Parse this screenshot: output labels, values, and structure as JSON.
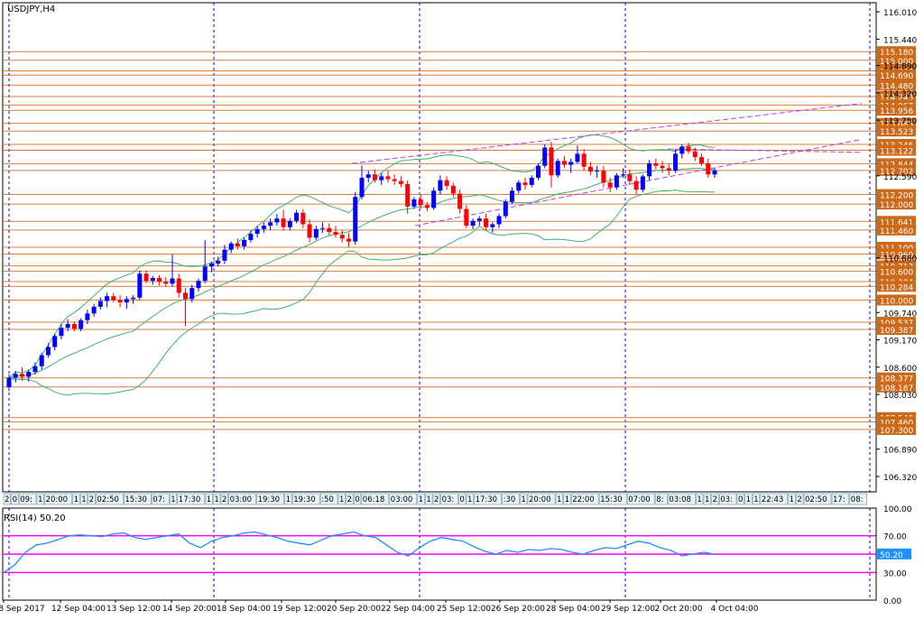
{
  "chart_data": {
    "type": "candlestick",
    "title": "USDJPY,H4",
    "price_axis": {
      "ylim": [
        106.0,
        116.2
      ],
      "ticks": [
        "116.010",
        "115.440",
        "114.890",
        "114.320",
        "113.750",
        "112.590",
        "110.880",
        "109.740",
        "109.170",
        "108.600",
        "108.030",
        "106.890",
        "106.320"
      ]
    },
    "levels": [
      {
        "value": 115.18,
        "label": "115.180"
      },
      {
        "value": 115.0,
        "label": "115.000"
      },
      {
        "value": 114.78,
        "label": "114.780"
      },
      {
        "value": 114.69,
        "label": "114.690"
      },
      {
        "value": 114.48,
        "label": "114.480"
      },
      {
        "value": 114.243,
        "label": "114.243"
      },
      {
        "value": 114.067,
        "label": "114.067"
      },
      {
        "value": 113.956,
        "label": "113.956"
      },
      {
        "value": 113.685,
        "label": "113.685"
      },
      {
        "value": 113.523,
        "label": "113.523"
      },
      {
        "value": 113.246,
        "label": "113.246"
      },
      {
        "value": 113.122,
        "label": "113.122"
      },
      {
        "value": 112.844,
        "label": "112.844"
      },
      {
        "value": 112.702,
        "label": "112.702"
      },
      {
        "value": 112.2,
        "label": "112.200"
      },
      {
        "value": 112.0,
        "label": "112.000"
      },
      {
        "value": 111.641,
        "label": "111.641"
      },
      {
        "value": 111.46,
        "label": "111.460"
      },
      {
        "value": 111.1,
        "label": "111.100"
      },
      {
        "value": 110.96,
        "label": "110.960"
      },
      {
        "value": 110.713,
        "label": "110.713"
      },
      {
        "value": 110.6,
        "label": "110.600"
      },
      {
        "value": 110.384,
        "label": "110.384"
      },
      {
        "value": 110.284,
        "label": "110.284"
      },
      {
        "value": 110.0,
        "label": "110.000"
      },
      {
        "value": 109.537,
        "label": "109.537"
      },
      {
        "value": 109.387,
        "label": "109.387"
      },
      {
        "value": 108.377,
        "label": "108.377"
      },
      {
        "value": 108.187,
        "label": "108.187"
      },
      {
        "value": 107.549,
        "label": "107.549"
      },
      {
        "value": 107.46,
        "label": "107.460"
      },
      {
        "value": 107.3,
        "label": "107.300"
      }
    ],
    "time_labels": [
      "8 Sep 2017",
      "12 Sep 04:00",
      "13 Sep 12:00",
      "14 Sep 20:00",
      "18 Sep 04:00",
      "19 Sep 12:00",
      "20 Sep 20:00",
      "22 Sep 04:00",
      "25 Sep 12:00",
      "26 Sep 20:00",
      "28 Sep 04:00",
      "29 Sep 12:00",
      "2 Oct 20:00",
      "4 Oct 04:00"
    ],
    "candles": [
      [
        108.18,
        108.45,
        108.1,
        108.38
      ],
      [
        108.38,
        108.52,
        108.28,
        108.46
      ],
      [
        108.46,
        108.6,
        108.32,
        108.4
      ],
      [
        108.4,
        108.55,
        108.3,
        108.5
      ],
      [
        108.5,
        108.7,
        108.45,
        108.62
      ],
      [
        108.62,
        108.9,
        108.55,
        108.85
      ],
      [
        108.85,
        109.1,
        108.8,
        109.02
      ],
      [
        109.02,
        109.3,
        108.95,
        109.25
      ],
      [
        109.25,
        109.5,
        109.18,
        109.42
      ],
      [
        109.42,
        109.6,
        109.35,
        109.5
      ],
      [
        109.5,
        109.55,
        109.35,
        109.4
      ],
      [
        109.4,
        109.62,
        109.35,
        109.58
      ],
      [
        109.58,
        109.8,
        109.5,
        109.72
      ],
      [
        109.72,
        109.92,
        109.65,
        109.86
      ],
      [
        109.86,
        110.05,
        109.8,
        109.98
      ],
      [
        109.98,
        110.15,
        109.85,
        110.08
      ],
      [
        110.08,
        110.15,
        109.95,
        110.0
      ],
      [
        110.0,
        110.1,
        109.85,
        109.95
      ],
      [
        109.95,
        110.08,
        109.82,
        110.02
      ],
      [
        110.02,
        110.1,
        109.92,
        110.05
      ],
      [
        110.05,
        110.62,
        110.0,
        110.55
      ],
      [
        110.55,
        110.62,
        110.35,
        110.4
      ],
      [
        110.4,
        110.5,
        110.32,
        110.46
      ],
      [
        110.46,
        110.52,
        110.3,
        110.38
      ],
      [
        110.38,
        110.48,
        110.28,
        110.34
      ],
      [
        110.34,
        110.95,
        110.28,
        110.45
      ],
      [
        110.45,
        110.55,
        110.05,
        110.15
      ],
      [
        110.15,
        110.25,
        109.45,
        110.02
      ],
      [
        110.02,
        110.32,
        109.95,
        110.25
      ],
      [
        110.25,
        110.45,
        110.18,
        110.4
      ],
      [
        110.4,
        111.25,
        110.35,
        110.7
      ],
      [
        110.7,
        110.8,
        110.58,
        110.76
      ],
      [
        110.76,
        110.9,
        110.7,
        110.82
      ],
      [
        110.82,
        111.15,
        110.75,
        111.05
      ],
      [
        111.05,
        111.22,
        110.98,
        111.18
      ],
      [
        111.18,
        111.28,
        111.05,
        111.12
      ],
      [
        111.12,
        111.3,
        111.05,
        111.25
      ],
      [
        111.25,
        111.45,
        111.2,
        111.38
      ],
      [
        111.38,
        111.55,
        111.3,
        111.48
      ],
      [
        111.48,
        111.62,
        111.4,
        111.55
      ],
      [
        111.55,
        111.7,
        111.45,
        111.62
      ],
      [
        111.62,
        111.8,
        111.55,
        111.7
      ],
      [
        111.7,
        111.88,
        111.45,
        111.52
      ],
      [
        111.52,
        111.7,
        111.45,
        111.65
      ],
      [
        111.65,
        111.88,
        111.6,
        111.82
      ],
      [
        111.82,
        111.9,
        111.5,
        111.58
      ],
      [
        111.58,
        111.68,
        111.2,
        111.3
      ],
      [
        111.3,
        111.55,
        111.25,
        111.48
      ],
      [
        111.48,
        111.62,
        111.4,
        111.5
      ],
      [
        111.5,
        111.6,
        111.35,
        111.42
      ],
      [
        111.42,
        111.55,
        111.3,
        111.36
      ],
      [
        111.36,
        111.45,
        111.2,
        111.28
      ],
      [
        111.28,
        111.4,
        111.1,
        111.22
      ],
      [
        111.22,
        112.25,
        111.15,
        112.15
      ],
      [
        112.15,
        112.8,
        112.1,
        112.55
      ],
      [
        112.55,
        112.7,
        112.45,
        112.62
      ],
      [
        112.62,
        112.72,
        112.45,
        112.5
      ],
      [
        112.5,
        112.65,
        112.4,
        112.58
      ],
      [
        112.58,
        112.7,
        112.45,
        112.52
      ],
      [
        112.52,
        112.62,
        112.4,
        112.48
      ],
      [
        112.48,
        112.58,
        112.35,
        112.42
      ],
      [
        112.42,
        112.5,
        111.8,
        111.95
      ],
      [
        111.95,
        112.15,
        111.9,
        112.1
      ],
      [
        112.1,
        112.2,
        111.9,
        111.98
      ],
      [
        111.98,
        112.05,
        111.85,
        111.92
      ],
      [
        111.92,
        112.35,
        111.88,
        112.28
      ],
      [
        112.28,
        112.6,
        112.2,
        112.5
      ],
      [
        112.5,
        112.58,
        112.3,
        112.38
      ],
      [
        112.38,
        112.45,
        112.15,
        112.22
      ],
      [
        112.22,
        112.3,
        111.8,
        111.9
      ],
      [
        111.9,
        111.98,
        111.5,
        111.55
      ],
      [
        111.55,
        111.7,
        111.48,
        111.65
      ],
      [
        111.65,
        111.75,
        111.55,
        111.7
      ],
      [
        111.7,
        111.8,
        111.45,
        111.52
      ],
      [
        111.52,
        111.62,
        111.4,
        111.58
      ],
      [
        111.58,
        111.8,
        111.5,
        111.75
      ],
      [
        111.75,
        112.1,
        111.7,
        112.05
      ],
      [
        112.05,
        112.35,
        112.0,
        112.28
      ],
      [
        112.28,
        112.5,
        112.22,
        112.45
      ],
      [
        112.45,
        112.55,
        112.3,
        112.4
      ],
      [
        112.4,
        112.6,
        112.35,
        112.55
      ],
      [
        112.55,
        112.85,
        112.5,
        112.8
      ],
      [
        112.8,
        113.25,
        112.75,
        113.18
      ],
      [
        113.18,
        113.3,
        112.35,
        112.6
      ],
      [
        112.6,
        112.95,
        112.55,
        112.9
      ],
      [
        112.9,
        113.0,
        112.75,
        112.82
      ],
      [
        112.82,
        112.95,
        112.65,
        112.88
      ],
      [
        112.88,
        113.22,
        112.85,
        113.05
      ],
      [
        113.05,
        113.15,
        112.7,
        112.78
      ],
      [
        112.78,
        112.88,
        112.6,
        112.68
      ],
      [
        112.68,
        112.8,
        112.55,
        112.7
      ],
      [
        112.7,
        112.8,
        112.35,
        112.45
      ],
      [
        112.45,
        112.55,
        112.25,
        112.35
      ],
      [
        112.35,
        112.65,
        112.3,
        112.6
      ],
      [
        112.6,
        112.75,
        112.55,
        112.62
      ],
      [
        112.62,
        112.72,
        112.4,
        112.48
      ],
      [
        112.48,
        112.58,
        112.2,
        112.3
      ],
      [
        112.3,
        112.62,
        112.25,
        112.58
      ],
      [
        112.58,
        112.92,
        112.5,
        112.85
      ],
      [
        112.85,
        112.95,
        112.72,
        112.8
      ],
      [
        112.8,
        112.9,
        112.65,
        112.75
      ],
      [
        112.75,
        112.85,
        112.6,
        112.7
      ],
      [
        112.7,
        113.15,
        112.65,
        113.05
      ],
      [
        113.05,
        113.25,
        112.95,
        113.2
      ],
      [
        113.2,
        113.28,
        113.05,
        113.1
      ],
      [
        113.1,
        113.18,
        112.9,
        112.98
      ],
      [
        112.98,
        113.05,
        112.8,
        112.85
      ],
      [
        112.85,
        112.95,
        112.55,
        112.62
      ],
      [
        112.62,
        112.75,
        112.55,
        112.7
      ]
    ],
    "rsi": {
      "label": "RSI(14) 50.20",
      "ylim": [
        0,
        100
      ],
      "ticks": [
        "100.00",
        "70.00",
        "50.00",
        "30.00",
        "0.00"
      ],
      "levels": [
        70,
        50,
        30
      ],
      "values": [
        30,
        38,
        52,
        60,
        62,
        66,
        70,
        71,
        70,
        69,
        72,
        73,
        68,
        66,
        68,
        70,
        72,
        62,
        57,
        64,
        68,
        70,
        73,
        74,
        71,
        68,
        64,
        62,
        60,
        65,
        70,
        72,
        74,
        70,
        68,
        60,
        52,
        48,
        57,
        64,
        68,
        66,
        64,
        58,
        53,
        50,
        54,
        52,
        55,
        54,
        56,
        55,
        52,
        50,
        54,
        57,
        56,
        60,
        64,
        62,
        57,
        54,
        48,
        50,
        52,
        50
      ],
      "value": "50.20"
    },
    "session_tags": [
      "2",
      "0",
      "09:",
      "1",
      "20:00",
      "1",
      "1",
      "2",
      "02:50",
      "15:30",
      "07:",
      "1",
      "17:30",
      "1",
      "1",
      "2",
      "03:00",
      "19:30",
      "1",
      "19:30",
      ":50",
      "1",
      "2",
      "0",
      "06:18",
      "03:00",
      "1",
      "1",
      "2",
      "03:",
      "0",
      "1",
      "17:30",
      ":30",
      "1",
      "20:00",
      "1",
      "1",
      "22:00",
      "15:30",
      "07:00",
      "8:",
      "03:08",
      "1",
      "1",
      "2",
      "03:",
      "0",
      "1",
      "1",
      "22:43",
      "1",
      "2",
      "02:50",
      "17:",
      "08:",
      "22:00"
    ]
  }
}
